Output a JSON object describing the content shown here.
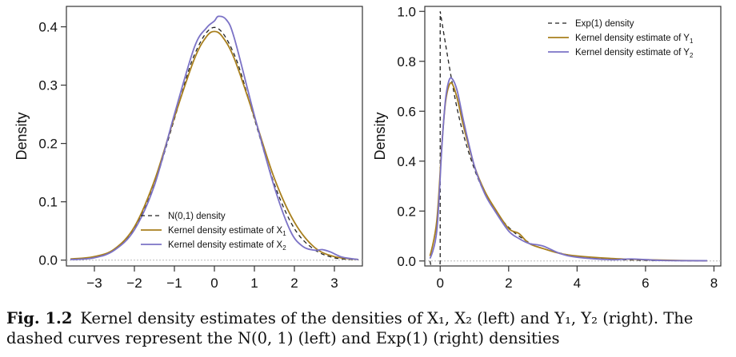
{
  "caption": {
    "label": "Fig. 1.2",
    "text": "Kernel density estimates of the densities of X₁, X₂ (left) and Y₁, Y₂ (right). The dashed curves represent the N(0, 1) (left) and Exp(1) (right) densities"
  },
  "colors": {
    "reference": "#222222",
    "kde1": "#a87f1d",
    "kde2": "#7b72c6",
    "frame": "#333333",
    "zeroline": "#b8b8b8"
  },
  "chart_data": [
    {
      "type": "line",
      "ylabel": "Density",
      "xlim": [
        -3.7,
        3.7
      ],
      "ylim": [
        -0.01,
        0.435
      ],
      "xticks": [
        -3,
        -2,
        -1,
        0,
        1,
        2,
        3
      ],
      "yticks": [
        0.0,
        0.1,
        0.2,
        0.3,
        0.4
      ],
      "legend_position": "bottom-center",
      "series": [
        {
          "name": "N(0,1) density",
          "style": "dashed",
          "color": "#222222",
          "x": [
            -3.5,
            -3.0,
            -2.5,
            -2.0,
            -1.5,
            -1.0,
            -0.5,
            0,
            0.5,
            1.0,
            1.5,
            2.0,
            2.5,
            3.0,
            3.5
          ],
          "y": [
            0.001,
            0.004,
            0.018,
            0.054,
            0.13,
            0.242,
            0.352,
            0.399,
            0.352,
            0.242,
            0.13,
            0.054,
            0.018,
            0.004,
            0.001
          ]
        },
        {
          "name": "Kernel density estimate of X",
          "legend_sub": "1",
          "style": "solid",
          "color": "#a87f1d",
          "x": [
            -3.6,
            -3.0,
            -2.5,
            -2.0,
            -1.5,
            -1.0,
            -0.5,
            -0.2,
            0,
            0.2,
            0.5,
            1.0,
            1.5,
            2.0,
            2.5,
            3.0,
            3.6
          ],
          "y": [
            0.002,
            0.006,
            0.019,
            0.057,
            0.136,
            0.245,
            0.345,
            0.383,
            0.392,
            0.383,
            0.345,
            0.245,
            0.14,
            0.065,
            0.022,
            0.006,
            0.001
          ]
        },
        {
          "name": "Kernel density estimate of X",
          "legend_sub": "2",
          "style": "solid",
          "color": "#7b72c6",
          "x": [
            -3.6,
            -3.0,
            -2.5,
            -2.0,
            -1.5,
            -1.0,
            -0.5,
            -0.2,
            0,
            0.1,
            0.3,
            0.5,
            1.0,
            1.5,
            1.9,
            2.2,
            2.5,
            2.7,
            2.9,
            3.2,
            3.6
          ],
          "y": [
            0.001,
            0.004,
            0.017,
            0.052,
            0.128,
            0.25,
            0.365,
            0.398,
            0.41,
            0.418,
            0.412,
            0.38,
            0.248,
            0.125,
            0.05,
            0.024,
            0.017,
            0.018,
            0.014,
            0.005,
            0.001
          ]
        }
      ]
    },
    {
      "type": "line",
      "ylabel": "Density",
      "xlim": [
        -0.45,
        8.2
      ],
      "ylim": [
        -0.02,
        1.02
      ],
      "xticks": [
        0,
        2,
        4,
        6,
        8
      ],
      "yticks": [
        0.0,
        0.2,
        0.4,
        0.6,
        0.8,
        1.0
      ],
      "legend_position": "top-right",
      "series": [
        {
          "name": "Exp(1) density",
          "style": "dashed",
          "color": "#222222",
          "x": [
            -0.3,
            0,
            0,
            0.5,
            1,
            1.5,
            2,
            2.5,
            3,
            4,
            5,
            6,
            7,
            7.8
          ],
          "y": [
            0,
            0,
            1.0,
            0.607,
            0.368,
            0.223,
            0.135,
            0.082,
            0.05,
            0.018,
            0.007,
            0.0025,
            0.0009,
            0.0004
          ]
        },
        {
          "name": "Kernel density estimate of Y",
          "legend_sub": "1",
          "style": "solid",
          "color": "#a87f1d",
          "x": [
            -0.3,
            -0.1,
            0.05,
            0.15,
            0.25,
            0.35,
            0.5,
            0.7,
            1.0,
            1.3,
            1.6,
            2.0,
            2.3,
            2.6,
            3.0,
            3.5,
            4.0,
            5.0,
            6.0,
            7.0,
            7.8
          ],
          "y": [
            0.02,
            0.16,
            0.47,
            0.63,
            0.7,
            0.71,
            0.65,
            0.53,
            0.38,
            0.28,
            0.21,
            0.13,
            0.11,
            0.07,
            0.05,
            0.03,
            0.02,
            0.01,
            0.005,
            0.002,
            0.001
          ]
        },
        {
          "name": "Kernel density estimate of Y",
          "legend_sub": "2",
          "style": "solid",
          "color": "#7b72c6",
          "x": [
            -0.3,
            -0.1,
            0.05,
            0.15,
            0.25,
            0.35,
            0.5,
            0.7,
            1.0,
            1.3,
            1.6,
            2.0,
            2.3,
            2.6,
            3.0,
            3.5,
            4.0,
            5.0,
            5.6,
            6.5,
            7.8
          ],
          "y": [
            0.01,
            0.12,
            0.46,
            0.64,
            0.72,
            0.73,
            0.68,
            0.55,
            0.38,
            0.27,
            0.2,
            0.12,
            0.09,
            0.07,
            0.06,
            0.03,
            0.015,
            0.005,
            0.008,
            0.002,
            0.001
          ]
        }
      ]
    }
  ]
}
